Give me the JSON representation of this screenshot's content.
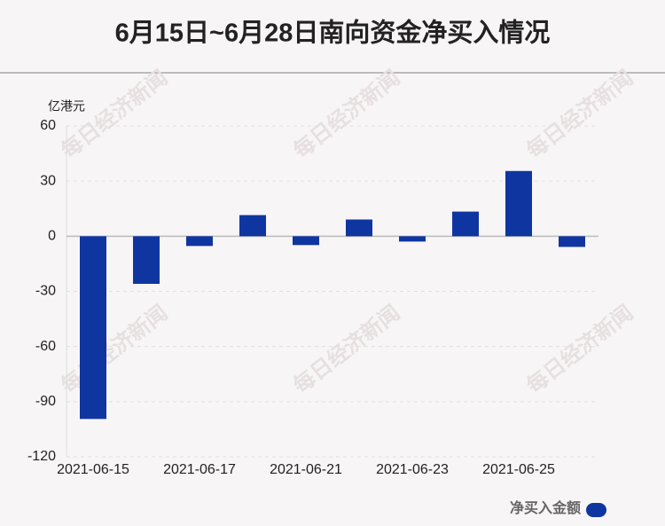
{
  "chart_data": {
    "type": "bar",
    "title": "6月15日~6月28日南向资金净买入情况",
    "y_label": "亿港元",
    "watermark": "每日经济新闻",
    "categories": [
      "2021-06-15",
      null,
      "2021-06-17",
      null,
      "2021-06-21",
      null,
      "2021-06-23",
      null,
      "2021-06-25",
      null
    ],
    "series": [
      {
        "name": "净买入金额",
        "color": "#0f36a0",
        "values": [
          -99.4,
          -25.9,
          -5.3,
          11.5,
          -4.8,
          9.1,
          -2.9,
          13.4,
          35.5,
          -5.8
        ]
      }
    ],
    "ylim": [
      -120,
      60
    ],
    "yticks": [
      -120,
      -90,
      -60,
      -30,
      0,
      30,
      60
    ],
    "grid": true,
    "legend": "bottom-right"
  }
}
